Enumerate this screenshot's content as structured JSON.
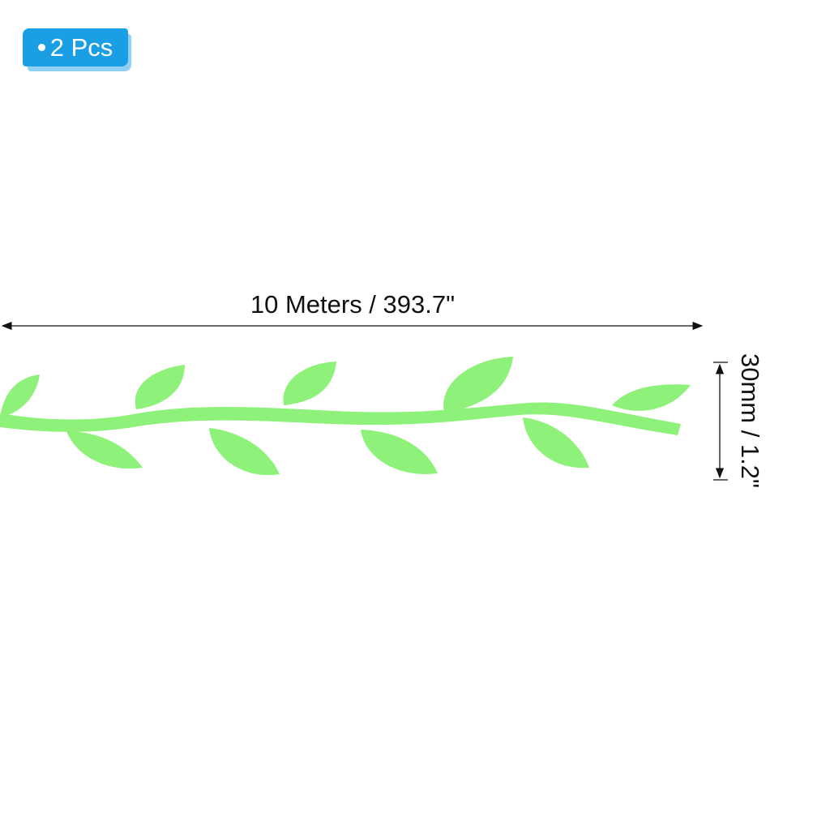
{
  "badge": {
    "text": "2 Pcs",
    "color": "#1a9fe5"
  },
  "dimensions": {
    "length": "10 Meters / 393.7\"",
    "width": "30mm / 1.2\""
  },
  "product": {
    "name": "leaf-vine-ribbon",
    "color": "#8ef27a"
  }
}
